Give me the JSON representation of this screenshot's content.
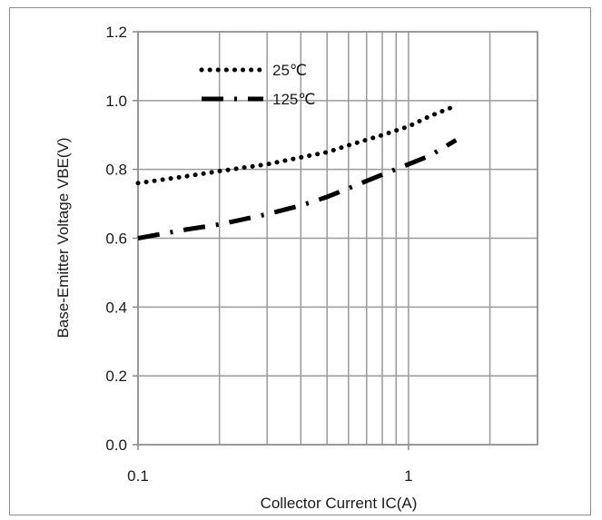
{
  "chart_data": {
    "type": "line",
    "title": "",
    "xlabel": "Collector Current IC(A)",
    "ylabel": "Base-Emitter Voltage VBE(V)",
    "x_scale": "log",
    "xlim": [
      0.1,
      3
    ],
    "ylim": [
      0.0,
      1.2
    ],
    "x_ticks": [
      {
        "value": 0.1,
        "label": "0.1"
      },
      {
        "value": 1,
        "label": "1"
      }
    ],
    "y_ticks": [
      {
        "value": 0.0,
        "label": "0.0"
      },
      {
        "value": 0.2,
        "label": "0.2"
      },
      {
        "value": 0.4,
        "label": "0.4"
      },
      {
        "value": 0.6,
        "label": "0.6"
      },
      {
        "value": 0.8,
        "label": "0.8"
      },
      {
        "value": 1.0,
        "label": "1.0"
      },
      {
        "value": 1.2,
        "label": "1.2"
      }
    ],
    "grid": true,
    "legend_position": "top-left",
    "series": [
      {
        "name": "25℃",
        "style": "dotted",
        "color": "#000000",
        "x": [
          0.1,
          0.15,
          0.2,
          0.3,
          0.4,
          0.5,
          0.6,
          0.8,
          1.0,
          1.2,
          1.5
        ],
        "y": [
          0.76,
          0.78,
          0.795,
          0.815,
          0.835,
          0.85,
          0.87,
          0.9,
          0.925,
          0.955,
          0.985
        ]
      },
      {
        "name": "125℃",
        "style": "dash-dot",
        "color": "#000000",
        "x": [
          0.1,
          0.15,
          0.2,
          0.3,
          0.4,
          0.5,
          0.6,
          0.8,
          1.0,
          1.2,
          1.5
        ],
        "y": [
          0.6,
          0.625,
          0.64,
          0.67,
          0.695,
          0.72,
          0.745,
          0.785,
          0.815,
          0.84,
          0.885
        ]
      }
    ]
  }
}
